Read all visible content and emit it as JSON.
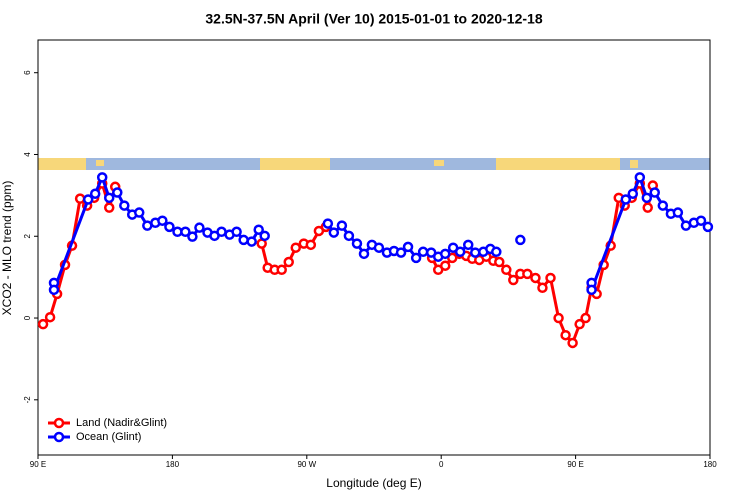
{
  "chart_data": {
    "type": "line",
    "title": "32.5N-37.5N April (Ver 10)   2015-01-01 to 2020-12-18",
    "x_label": "Longitude (deg E)",
    "y_label": "XCO2 - MLO trend (ppm)",
    "xlim": [
      90,
      540
    ],
    "xticks": [
      {
        "value": 90,
        "label": "90 E"
      },
      180,
      {
        "value": 270,
        "label": "90 W"
      },
      {
        "value": 360,
        "label": "0"
      },
      {
        "value": 450,
        "label": "90 E"
      },
      {
        "value": 540,
        "label": "180"
      }
    ],
    "ylim": [
      -3.35,
      6.8
    ],
    "yticks": [
      -2,
      0,
      2,
      4,
      6
    ],
    "legend": "bottom-left",
    "series": [
      {
        "name": "Land (Nadir&Glint)",
        "color": "#ff0000",
        "x": [
          93.4,
          98.1,
          102.8,
          108.1,
          112.8,
          118.2,
          122.9,
          127.6,
          133,
          137.7,
          141.7,
          null,
          239.8,
          243.8,
          248.5,
          253.2,
          257.9,
          262.6,
          268,
          272.7,
          278.1,
          282.8,
          null,
          353.9,
          358,
          362.7,
          367.4,
          372.1,
          376.8,
          380.8,
          385.5,
          390.2,
          394.9,
          398.9,
          403.6,
          408.3,
          413,
          417.7,
          423.1,
          427.8,
          433.2,
          438.6,
          443.3,
          448,
          452.7,
          456.7,
          460.7,
          464.1,
          468.8,
          473.5,
          478.9,
          482.9,
          487.6,
          493,
          498.3,
          501.7
        ],
        "values": [
          -0.15,
          0.02,
          0.59,
          1.3,
          1.77,
          2.92,
          2.75,
          2.94,
          3.29,
          2.7,
          3.21,
          null,
          1.82,
          1.23,
          1.18,
          1.18,
          1.37,
          1.72,
          1.82,
          1.79,
          2.13,
          2.23,
          null,
          1.47,
          1.18,
          1.28,
          1.47,
          1.57,
          1.52,
          1.45,
          1.42,
          1.5,
          1.4,
          1.37,
          1.18,
          0.93,
          1.08,
          1.08,
          0.98,
          0.74,
          0.98,
          0,
          -0.42,
          -0.61,
          -0.15,
          0,
          0.74,
          0.59,
          1.3,
          1.77,
          2.94,
          2.75,
          2.94,
          3.29,
          2.7,
          3.24
        ]
      },
      {
        "name": "Ocean (Glint)",
        "color": "#0000ff",
        "x": [
          100.7,
          100.7,
          123.6,
          128.3,
          133,
          137.7,
          143.1,
          147.8,
          153.1,
          157.8,
          163.2,
          168.6,
          173.3,
          178,
          183.4,
          188.7,
          193.4,
          198.1,
          203.5,
          208.2,
          212.9,
          218.3,
          223,
          227.7,
          233.1,
          237.8,
          241.8,
          null,
          284.1,
          288.1,
          293.5,
          298.2,
          303.6,
          308.3,
          313.6,
          318.3,
          323.7,
          328.4,
          333.1,
          337.8,
          343.2,
          347.9,
          353.3,
          358,
          362.7,
          368,
          372.7,
          378.1,
          382.8,
          388.2,
          392.9,
          396.9,
          null,
          413,
          null,
          460.7,
          460.7,
          483.6,
          488.3,
          493,
          497.7,
          503,
          508.4,
          513.8,
          518.5,
          523.9,
          529.2,
          534,
          538.6
        ],
        "values": [
          0.86,
          0.69,
          2.9,
          3.04,
          3.44,
          2.94,
          3.07,
          2.75,
          2.53,
          2.58,
          2.26,
          2.33,
          2.38,
          2.23,
          2.11,
          2.11,
          1.99,
          2.21,
          2.09,
          2.01,
          2.11,
          2.04,
          2.11,
          1.91,
          1.87,
          2.16,
          2.01,
          null,
          2.31,
          2.09,
          2.26,
          2.01,
          1.82,
          1.57,
          1.79,
          1.72,
          1.6,
          1.64,
          1.6,
          1.74,
          1.47,
          1.62,
          1.6,
          1.5,
          1.57,
          1.72,
          1.62,
          1.79,
          1.6,
          1.62,
          1.69,
          1.62,
          null,
          1.91,
          null,
          0.86,
          0.69,
          2.9,
          3.04,
          3.44,
          2.94,
          3.07,
          2.75,
          2.55,
          2.58,
          2.26,
          2.33,
          2.38,
          2.23
        ]
      }
    ]
  }
}
